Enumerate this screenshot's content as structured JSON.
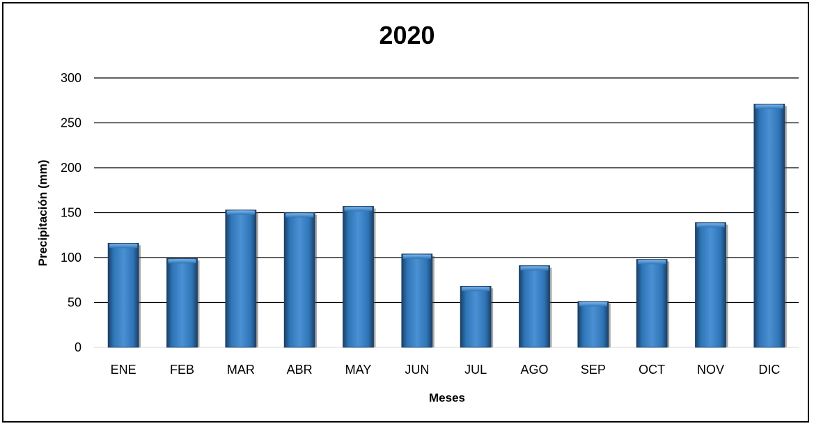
{
  "chart_data": {
    "type": "bar",
    "title": "2020",
    "xlabel": "Meses",
    "ylabel": "Precipitación (mm)",
    "categories": [
      "ENE",
      "FEB",
      "MAR",
      "ABR",
      "MAY",
      "JUN",
      "JUL",
      "AGO",
      "SEP",
      "OCT",
      "NOV",
      "DIC"
    ],
    "values": [
      116,
      99,
      153,
      150,
      157,
      104,
      68,
      91,
      51,
      98,
      139,
      271
    ],
    "ylim": [
      0,
      300
    ],
    "yticks": [
      "0",
      "50",
      "100",
      "150",
      "200",
      "250",
      "300"
    ],
    "grid": true,
    "legend": "none",
    "bar_color": "#2E75B6",
    "bar_shadow_color": "#1B3F66"
  }
}
